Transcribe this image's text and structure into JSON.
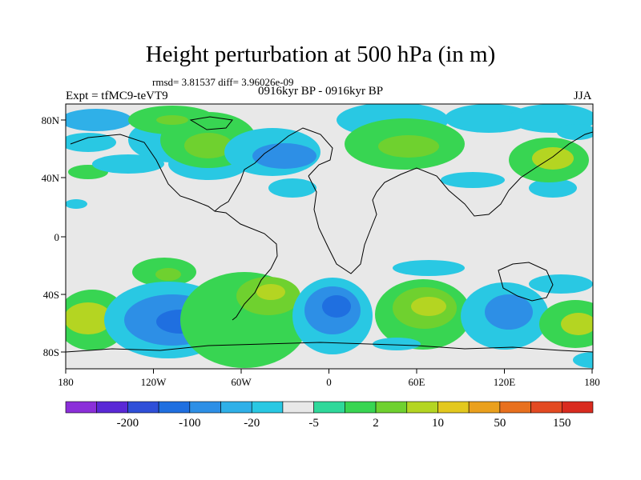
{
  "title": "Height perturbation at 500 hPa (in m)",
  "stats": "rmsd= 3.81537 diff= 3.96026e-09",
  "period": "0916kyr BP - 0916kyr BP",
  "experiment": "Expt = tfMC9-teVT9",
  "season": "JJA",
  "map": {
    "background": "#e8e8e8",
    "lat_labels": [
      "80N",
      "40N",
      "0",
      "40S",
      "80S"
    ],
    "lon_labels": [
      "180",
      "120W",
      "60W",
      "0",
      "60E",
      "120E",
      "180"
    ]
  },
  "colorbar": {
    "colors": [
      "#8b2fd9",
      "#5a28d6",
      "#2f4fd8",
      "#1f6fe0",
      "#2d8fe6",
      "#2fb0e8",
      "#29c8e3",
      "#e8e8e8",
      "#2fd89a",
      "#38d552",
      "#6fd12f",
      "#b4d522",
      "#e3c81e",
      "#eaa01d",
      "#e8701e",
      "#e34a22",
      "#d92b1f"
    ],
    "labels": [
      "-200",
      "-100",
      "-20",
      "-5",
      "2",
      "10",
      "50",
      "150"
    ]
  }
}
